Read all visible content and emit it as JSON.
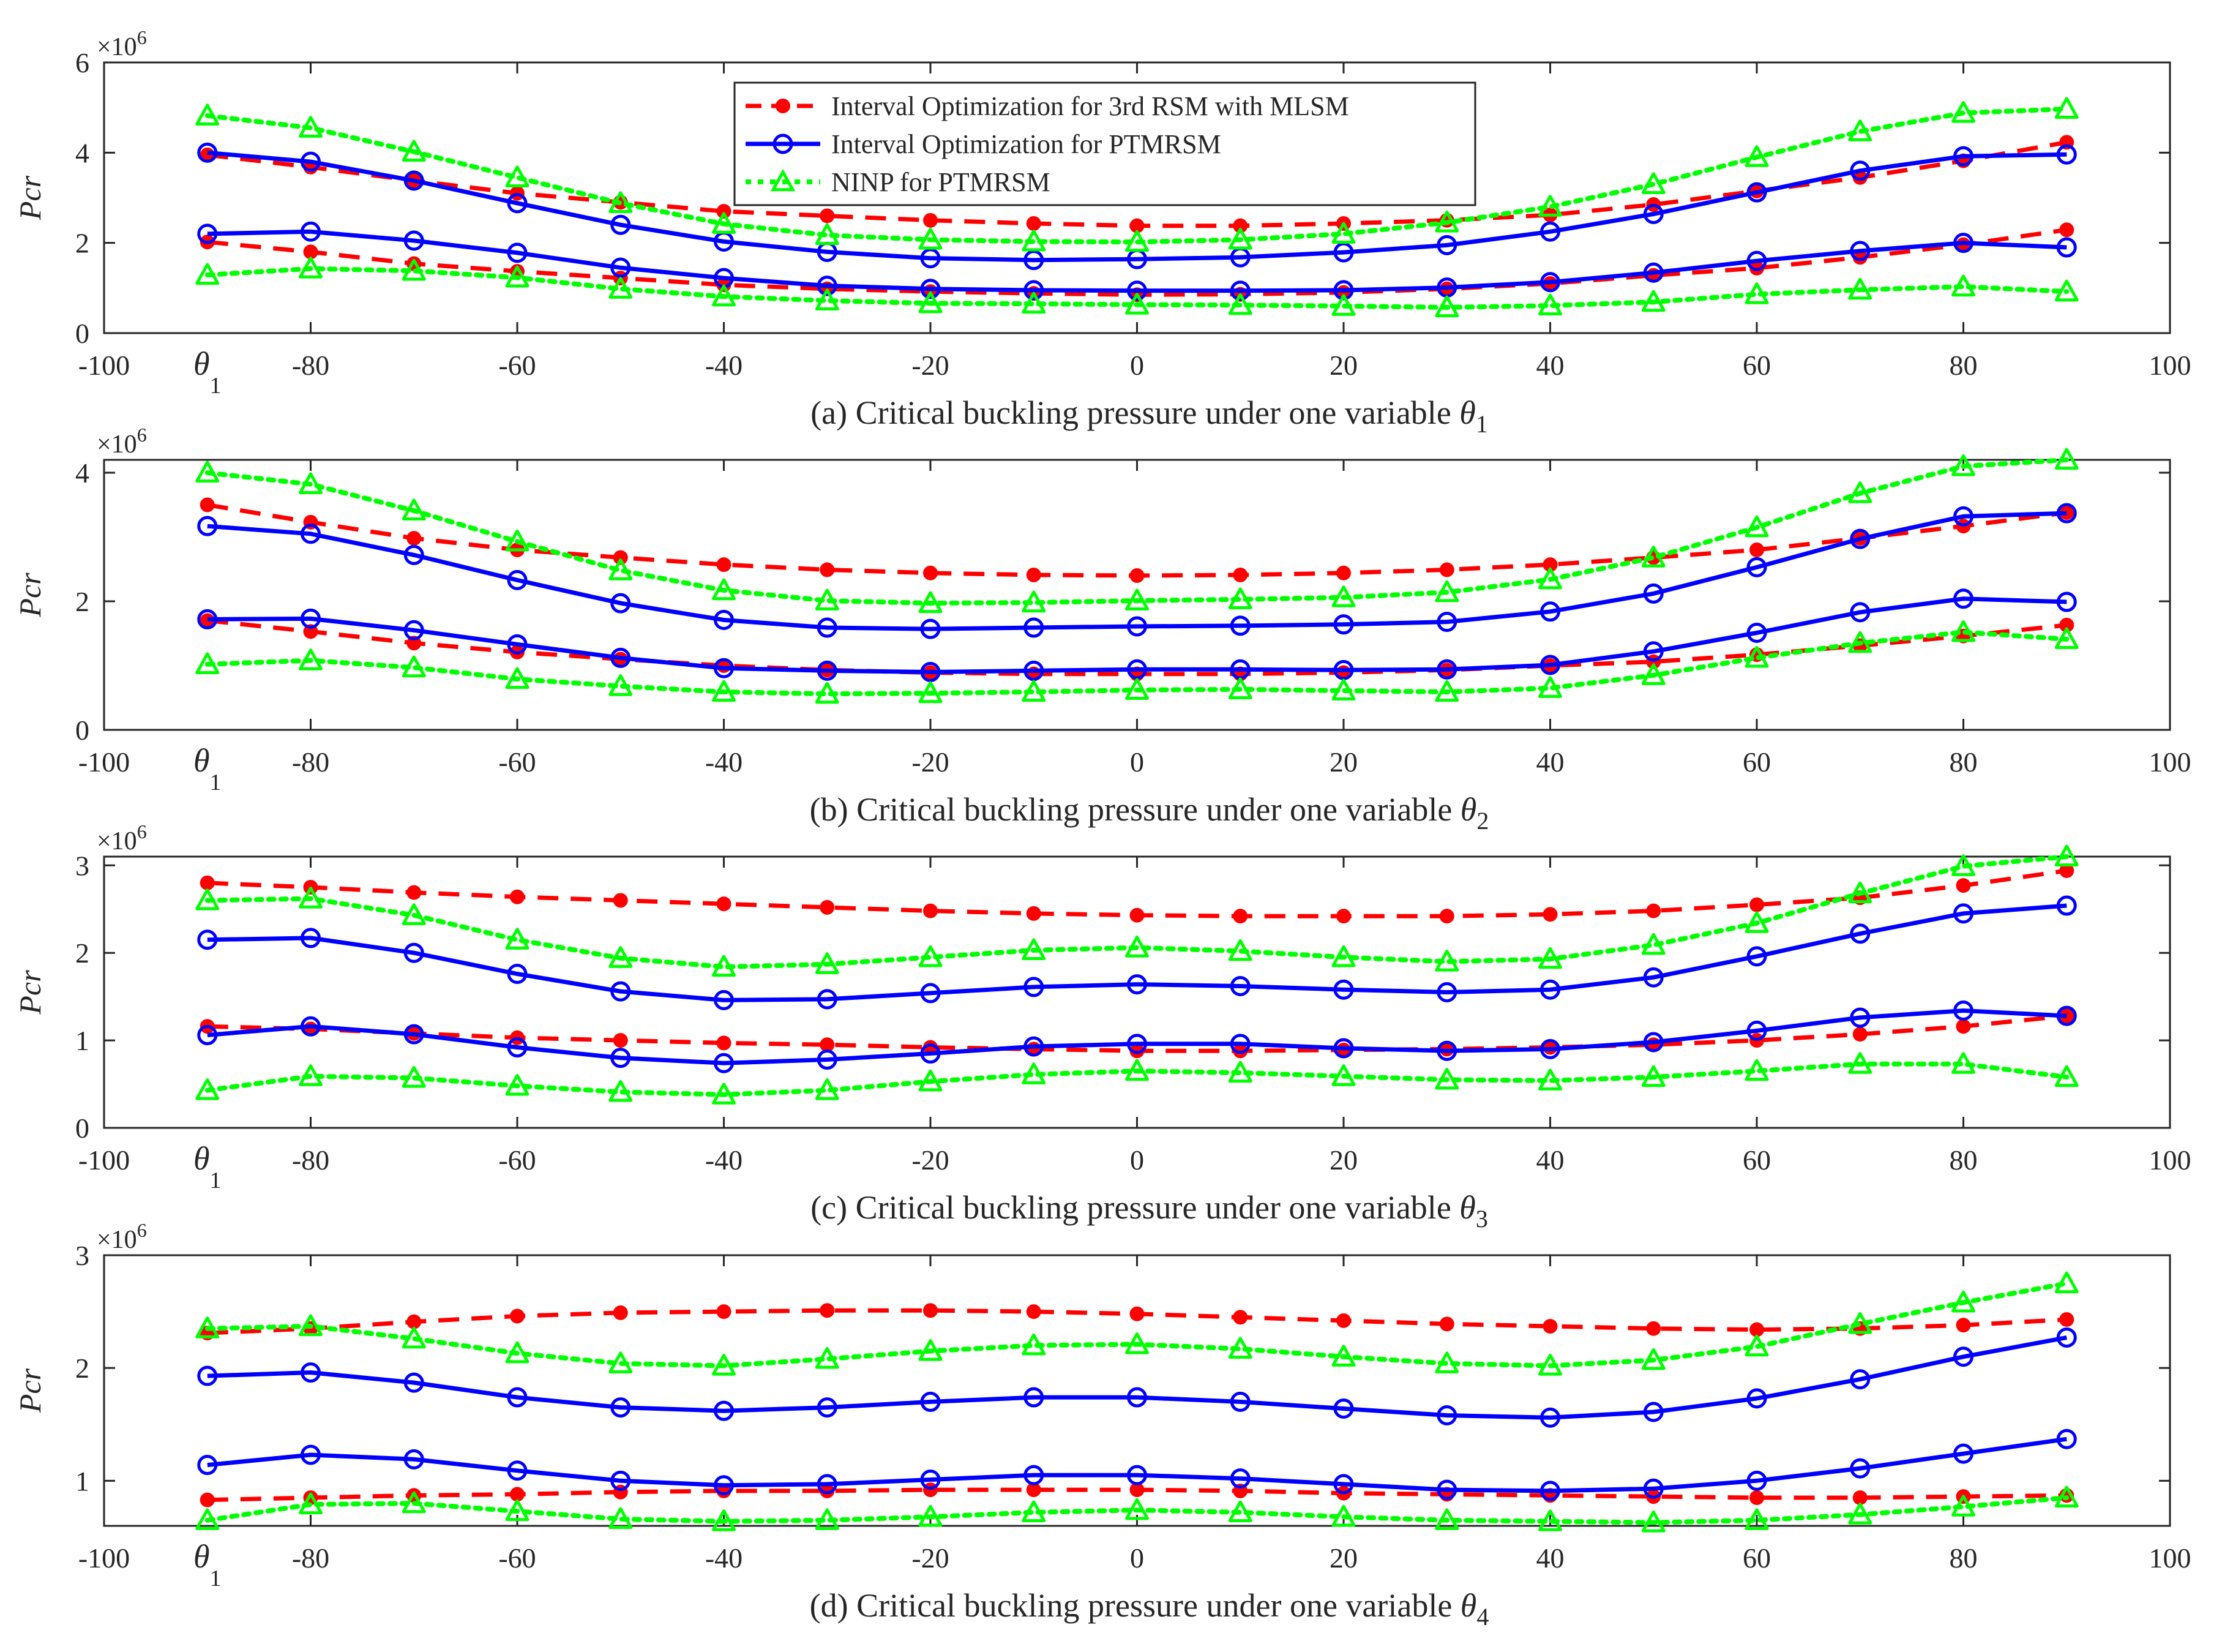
{
  "figure": {
    "legend": [
      {
        "label": "Interval Optimization for 3rd RSM with MLSM",
        "color": "#ff0000",
        "style": "dashed",
        "marker": "dot"
      },
      {
        "label": "Interval Optimization for PTMRSM",
        "color": "#0000ff",
        "style": "solid",
        "marker": "circle"
      },
      {
        "label": "NINP for PTMRSM",
        "color": "#00ff00",
        "style": "dotted",
        "marker": "triangle"
      }
    ]
  },
  "chart_data": [
    {
      "type": "line",
      "caption_prefix": "(a) Critical buckling pressure under one variable ",
      "caption_var": "θ",
      "caption_sub": "1",
      "ylabel": "Pcr",
      "exponent_base": "×10",
      "exponent_power": "6",
      "xlim": [
        -100,
        100
      ],
      "ylim": [
        0,
        6000000
      ],
      "xticks": [
        -100,
        -80,
        -60,
        -40,
        -20,
        0,
        20,
        40,
        60,
        80,
        100
      ],
      "xtick_labels": [
        "-100",
        "-80",
        "-60",
        "-40",
        "-20",
        "0",
        "20",
        "40",
        "60",
        "80",
        "100"
      ],
      "yticks": [
        0,
        2000000,
        4000000,
        6000000
      ],
      "ytick_labels": [
        "0",
        "2",
        "4",
        "6"
      ],
      "first_tick_var": "θ",
      "first_tick_sub": "1",
      "legend_visible": true,
      "x": [
        -90,
        -80,
        -70,
        -60,
        -50,
        -40,
        -30,
        -20,
        -10,
        0,
        10,
        20,
        30,
        40,
        50,
        60,
        70,
        80,
        90
      ],
      "series": [
        {
          "color": "#ff0000",
          "style": "dashed",
          "marker": "dot",
          "values": [
            3950000,
            3680000,
            3380000,
            3100000,
            2900000,
            2700000,
            2600000,
            2500000,
            2430000,
            2380000,
            2380000,
            2430000,
            2500000,
            2620000,
            2850000,
            3150000,
            3450000,
            3820000,
            4230000
          ]
        },
        {
          "color": "#ff0000",
          "style": "dashed",
          "marker": "dot",
          "values": [
            2020000,
            1800000,
            1540000,
            1370000,
            1220000,
            1070000,
            980000,
            920000,
            880000,
            850000,
            860000,
            900000,
            980000,
            1100000,
            1280000,
            1440000,
            1680000,
            1960000,
            2290000
          ]
        },
        {
          "color": "#0000ff",
          "style": "solid",
          "marker": "circle",
          "values": [
            4000000,
            3800000,
            3380000,
            2880000,
            2400000,
            2030000,
            1800000,
            1660000,
            1620000,
            1640000,
            1680000,
            1790000,
            1950000,
            2250000,
            2640000,
            3120000,
            3600000,
            3920000,
            3960000
          ]
        },
        {
          "color": "#0000ff",
          "style": "solid",
          "marker": "circle",
          "values": [
            2200000,
            2250000,
            2050000,
            1780000,
            1450000,
            1220000,
            1050000,
            980000,
            950000,
            940000,
            940000,
            950000,
            1010000,
            1130000,
            1340000,
            1600000,
            1820000,
            2000000,
            1900000
          ]
        },
        {
          "color": "#00ff00",
          "style": "dotted",
          "marker": "triangle",
          "values": [
            4820000,
            4550000,
            4020000,
            3450000,
            2880000,
            2420000,
            2170000,
            2070000,
            2030000,
            2020000,
            2070000,
            2200000,
            2450000,
            2800000,
            3300000,
            3900000,
            4470000,
            4880000,
            4970000
          ]
        },
        {
          "color": "#00ff00",
          "style": "dotted",
          "marker": "triangle",
          "values": [
            1290000,
            1430000,
            1380000,
            1230000,
            980000,
            810000,
            720000,
            660000,
            650000,
            630000,
            620000,
            600000,
            570000,
            610000,
            690000,
            860000,
            960000,
            1030000,
            920000
          ]
        }
      ]
    },
    {
      "type": "line",
      "caption_prefix": "(b) Critical buckling pressure under one variable ",
      "caption_var": "θ",
      "caption_sub": "2",
      "ylabel": "Pcr",
      "exponent_base": "×10",
      "exponent_power": "6",
      "xlim": [
        -100,
        100
      ],
      "ylim": [
        0,
        4200000
      ],
      "xticks": [
        -100,
        -80,
        -60,
        -40,
        -20,
        0,
        20,
        40,
        60,
        80,
        100
      ],
      "xtick_labels": [
        "-100",
        "-80",
        "-60",
        "-40",
        "-20",
        "0",
        "20",
        "40",
        "60",
        "80",
        "100"
      ],
      "yticks": [
        0,
        2000000,
        4000000
      ],
      "ytick_labels": [
        "0",
        "2",
        "4"
      ],
      "first_tick_var": "θ",
      "first_tick_sub": "1",
      "legend_visible": false,
      "x": [
        -90,
        -80,
        -70,
        -60,
        -50,
        -40,
        -30,
        -20,
        -10,
        0,
        10,
        20,
        30,
        40,
        50,
        60,
        70,
        80,
        90
      ],
      "series": [
        {
          "color": "#ff0000",
          "style": "dashed",
          "marker": "dot",
          "values": [
            3500000,
            3230000,
            2980000,
            2800000,
            2680000,
            2570000,
            2490000,
            2440000,
            2410000,
            2400000,
            2410000,
            2440000,
            2490000,
            2570000,
            2680000,
            2800000,
            2980000,
            3170000,
            3380000
          ]
        },
        {
          "color": "#ff0000",
          "style": "dashed",
          "marker": "dot",
          "values": [
            1700000,
            1530000,
            1350000,
            1210000,
            1100000,
            1000000,
            930000,
            890000,
            870000,
            870000,
            870000,
            890000,
            930000,
            1000000,
            1060000,
            1170000,
            1310000,
            1460000,
            1630000
          ]
        },
        {
          "color": "#0000ff",
          "style": "solid",
          "marker": "circle",
          "values": [
            3170000,
            3050000,
            2720000,
            2330000,
            1970000,
            1710000,
            1590000,
            1570000,
            1590000,
            1610000,
            1620000,
            1640000,
            1680000,
            1840000,
            2120000,
            2530000,
            2970000,
            3320000,
            3370000
          ]
        },
        {
          "color": "#0000ff",
          "style": "solid",
          "marker": "circle",
          "values": [
            1720000,
            1730000,
            1550000,
            1330000,
            1120000,
            960000,
            920000,
            900000,
            920000,
            940000,
            940000,
            930000,
            940000,
            1010000,
            1220000,
            1510000,
            1830000,
            2040000,
            1990000
          ]
        },
        {
          "color": "#00ff00",
          "style": "dotted",
          "marker": "triangle",
          "values": [
            4000000,
            3820000,
            3410000,
            2930000,
            2480000,
            2170000,
            2010000,
            1970000,
            1980000,
            2010000,
            2030000,
            2060000,
            2140000,
            2340000,
            2680000,
            3150000,
            3680000,
            4100000,
            4200000
          ]
        },
        {
          "color": "#00ff00",
          "style": "dotted",
          "marker": "triangle",
          "values": [
            1020000,
            1080000,
            970000,
            790000,
            680000,
            590000,
            560000,
            570000,
            590000,
            620000,
            630000,
            610000,
            590000,
            650000,
            850000,
            1120000,
            1350000,
            1520000,
            1410000
          ]
        }
      ]
    },
    {
      "type": "line",
      "caption_prefix": "(c) Critical buckling pressure under one variable ",
      "caption_var": "θ",
      "caption_sub": "3",
      "ylabel": "Pcr",
      "exponent_base": "×10",
      "exponent_power": "6",
      "xlim": [
        -100,
        100
      ],
      "ylim": [
        0,
        3100000
      ],
      "xticks": [
        -100,
        -80,
        -60,
        -40,
        -20,
        0,
        20,
        40,
        60,
        80,
        100
      ],
      "xtick_labels": [
        "-100",
        "-80",
        "-60",
        "-40",
        "-20",
        "0",
        "20",
        "40",
        "60",
        "80",
        "100"
      ],
      "yticks": [
        0,
        1000000,
        2000000,
        3000000
      ],
      "ytick_labels": [
        "0",
        "1",
        "2",
        "3"
      ],
      "first_tick_var": "θ",
      "first_tick_sub": "1",
      "legend_visible": false,
      "x": [
        -90,
        -80,
        -70,
        -60,
        -50,
        -40,
        -30,
        -20,
        -10,
        0,
        10,
        20,
        30,
        40,
        50,
        60,
        70,
        80,
        90
      ],
      "series": [
        {
          "color": "#ff0000",
          "style": "dashed",
          "marker": "dot",
          "values": [
            2800000,
            2750000,
            2690000,
            2640000,
            2600000,
            2560000,
            2520000,
            2480000,
            2450000,
            2430000,
            2420000,
            2420000,
            2420000,
            2440000,
            2480000,
            2550000,
            2630000,
            2770000,
            2940000
          ]
        },
        {
          "color": "#ff0000",
          "style": "dashed",
          "marker": "dot",
          "values": [
            1160000,
            1130000,
            1080000,
            1030000,
            1000000,
            970000,
            950000,
            920000,
            900000,
            880000,
            880000,
            890000,
            900000,
            920000,
            950000,
            1000000,
            1070000,
            1160000,
            1280000
          ]
        },
        {
          "color": "#0000ff",
          "style": "solid",
          "marker": "circle",
          "values": [
            2150000,
            2170000,
            2000000,
            1760000,
            1560000,
            1460000,
            1470000,
            1540000,
            1610000,
            1640000,
            1620000,
            1580000,
            1550000,
            1580000,
            1720000,
            1960000,
            2220000,
            2450000,
            2540000
          ]
        },
        {
          "color": "#0000ff",
          "style": "solid",
          "marker": "circle",
          "values": [
            1060000,
            1160000,
            1070000,
            920000,
            800000,
            740000,
            780000,
            850000,
            930000,
            960000,
            960000,
            910000,
            880000,
            900000,
            980000,
            1110000,
            1260000,
            1340000,
            1280000
          ]
        },
        {
          "color": "#00ff00",
          "style": "dotted",
          "marker": "triangle",
          "values": [
            2600000,
            2620000,
            2430000,
            2150000,
            1940000,
            1840000,
            1870000,
            1950000,
            2030000,
            2060000,
            2020000,
            1950000,
            1900000,
            1930000,
            2090000,
            2340000,
            2680000,
            2990000,
            3100000
          ]
        },
        {
          "color": "#00ff00",
          "style": "dotted",
          "marker": "triangle",
          "values": [
            430000,
            590000,
            570000,
            480000,
            410000,
            380000,
            430000,
            530000,
            610000,
            650000,
            630000,
            590000,
            550000,
            540000,
            580000,
            650000,
            730000,
            730000,
            580000
          ]
        }
      ]
    },
    {
      "type": "line",
      "caption_prefix": "(d) Critical buckling pressure under one variable ",
      "caption_var": "θ",
      "caption_sub": "4",
      "ylabel": "Pcr",
      "exponent_base": "×10",
      "exponent_power": "6",
      "xlim": [
        -100,
        100
      ],
      "ylim": [
        600000,
        3000000
      ],
      "xticks": [
        -100,
        -80,
        -60,
        -40,
        -20,
        0,
        20,
        40,
        60,
        80,
        100
      ],
      "xtick_labels": [
        "-100",
        "-80",
        "-60",
        "-40",
        "-20",
        "0",
        "20",
        "40",
        "60",
        "80",
        "100"
      ],
      "yticks": [
        1000000,
        2000000,
        3000000
      ],
      "ytick_labels": [
        "1",
        "2",
        "3"
      ],
      "first_tick_var": "θ",
      "first_tick_sub": "1",
      "legend_visible": false,
      "x": [
        -90,
        -80,
        -70,
        -60,
        -50,
        -40,
        -30,
        -20,
        -10,
        0,
        10,
        20,
        30,
        40,
        50,
        60,
        70,
        80,
        90
      ],
      "series": [
        {
          "color": "#ff0000",
          "style": "dashed",
          "marker": "dot",
          "values": [
            2310000,
            2350000,
            2410000,
            2460000,
            2490000,
            2500000,
            2510000,
            2510000,
            2500000,
            2480000,
            2450000,
            2420000,
            2390000,
            2370000,
            2350000,
            2340000,
            2350000,
            2380000,
            2430000
          ]
        },
        {
          "color": "#ff0000",
          "style": "dashed",
          "marker": "dot",
          "values": [
            830000,
            850000,
            870000,
            880000,
            900000,
            910000,
            910000,
            920000,
            920000,
            920000,
            910000,
            890000,
            880000,
            870000,
            860000,
            850000,
            850000,
            860000,
            870000
          ]
        },
        {
          "color": "#0000ff",
          "style": "solid",
          "marker": "circle",
          "values": [
            1930000,
            1960000,
            1870000,
            1740000,
            1650000,
            1620000,
            1650000,
            1700000,
            1740000,
            1740000,
            1700000,
            1640000,
            1580000,
            1560000,
            1610000,
            1730000,
            1900000,
            2100000,
            2270000
          ]
        },
        {
          "color": "#0000ff",
          "style": "solid",
          "marker": "circle",
          "values": [
            1140000,
            1230000,
            1190000,
            1090000,
            1000000,
            960000,
            970000,
            1010000,
            1050000,
            1050000,
            1020000,
            970000,
            920000,
            910000,
            930000,
            1000000,
            1110000,
            1240000,
            1370000
          ]
        },
        {
          "color": "#00ff00",
          "style": "dotted",
          "marker": "triangle",
          "values": [
            2350000,
            2370000,
            2260000,
            2130000,
            2040000,
            2020000,
            2080000,
            2150000,
            2200000,
            2210000,
            2170000,
            2100000,
            2040000,
            2020000,
            2070000,
            2190000,
            2390000,
            2580000,
            2750000
          ]
        },
        {
          "color": "#00ff00",
          "style": "dotted",
          "marker": "triangle",
          "values": [
            650000,
            790000,
            800000,
            730000,
            660000,
            640000,
            650000,
            680000,
            720000,
            740000,
            720000,
            680000,
            650000,
            640000,
            630000,
            650000,
            700000,
            770000,
            850000
          ]
        }
      ]
    }
  ]
}
